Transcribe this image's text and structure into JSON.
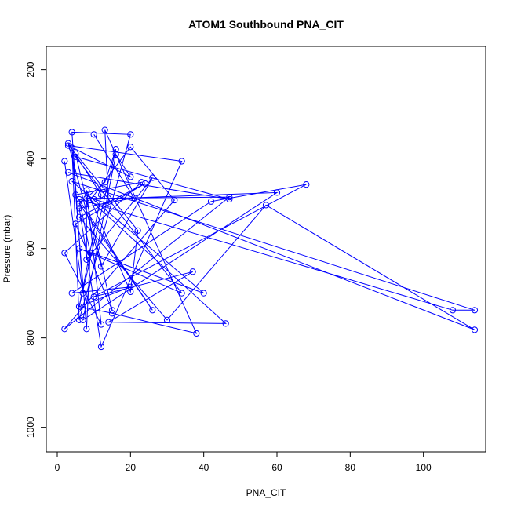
{
  "chart_data": {
    "type": "line",
    "title": "ATOM1 Southbound PNA_CIT",
    "xlabel": "PNA_CIT",
    "ylabel": "Pressure (mbar)",
    "xlim": [
      -3,
      117
    ],
    "ylim": [
      1055,
      148
    ],
    "y_reversed": true,
    "x_ticks": [
      0,
      20,
      40,
      60,
      80,
      100
    ],
    "y_ticks": [
      200,
      400,
      600,
      800,
      1000
    ],
    "line_color": "#0000ff",
    "marker": "open-circle",
    "grid": false,
    "series": [
      {
        "x": [
          2,
          7,
          4,
          20,
          6,
          4,
          8,
          9,
          6,
          108,
          114,
          4,
          40,
          6,
          34,
          5,
          47,
          3,
          114,
          57,
          30,
          6,
          24,
          5,
          15,
          5,
          22,
          20,
          8,
          12,
          2,
          23,
          5,
          26,
          6,
          13,
          16,
          6,
          20,
          4,
          42,
          68,
          10,
          37,
          14,
          46,
          9,
          20,
          32,
          2,
          47,
          8,
          8,
          26,
          12,
          3,
          12,
          6,
          15,
          38,
          13,
          14,
          10,
          60,
          7,
          16,
          20,
          3,
          34,
          12,
          6,
          21,
          10
        ],
        "y": [
          405,
          700,
          340,
          345,
          760,
          375,
          780,
          610,
          490,
          738,
          738,
          450,
          700,
          600,
          700,
          395,
          490,
          430,
          782,
          503,
          760,
          530,
          455,
          545,
          738,
          388,
          560,
          697,
          470,
          770,
          610,
          452,
          480,
          738,
          500,
          452,
          378,
          730,
          686,
          700,
          495,
          457,
          708,
          652,
          765,
          768,
          492,
          373,
          492,
          780,
          485,
          488,
          625,
          442,
          640,
          365,
          480,
          730,
          745,
          790,
          335,
          500,
          490,
          475,
          760,
          390,
          440,
          370,
          405,
          820,
          510,
          487,
          345
        ]
      }
    ]
  }
}
